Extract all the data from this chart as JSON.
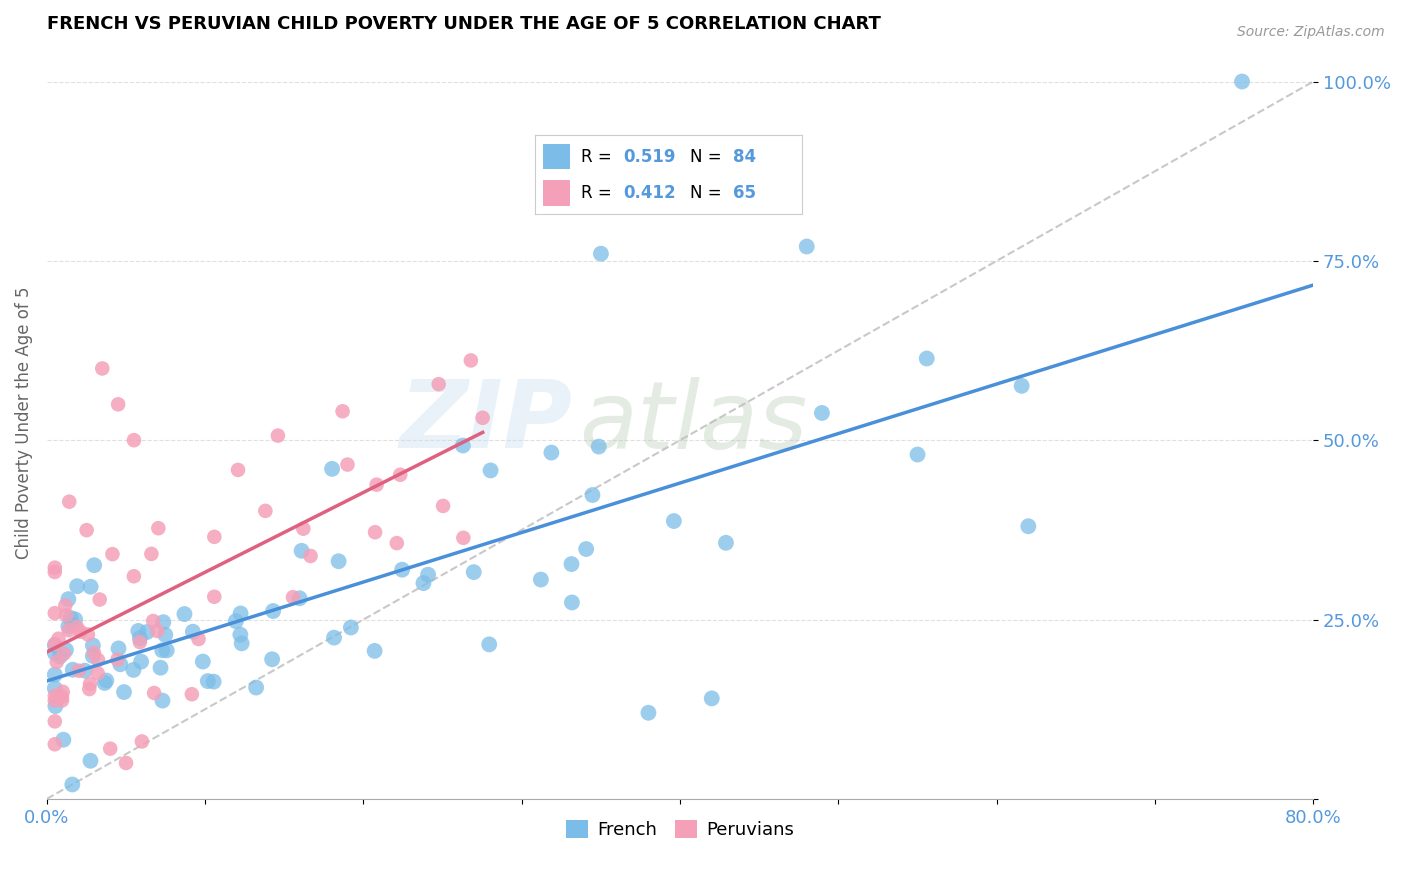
{
  "title": "FRENCH VS PERUVIAN CHILD POVERTY UNDER THE AGE OF 5 CORRELATION CHART",
  "source": "Source: ZipAtlas.com",
  "ylabel": "Child Poverty Under the Age of 5",
  "x_min": 0.0,
  "x_max": 0.8,
  "y_min": 0.0,
  "y_max": 1.05,
  "french_color": "#7bbde8",
  "peruvian_color": "#f4a0b8",
  "french_line_color": "#4a90d9",
  "peruvian_line_color": "#e06080",
  "diagonal_color": "#bbbbbb",
  "french_R": 0.519,
  "french_N": 84,
  "peruvian_R": 0.412,
  "peruvian_N": 65,
  "background_color": "#ffffff",
  "grid_color": "#dddddd",
  "watermark_zip": "ZIP",
  "watermark_atlas": "atlas",
  "ytick_color": "#5599dd",
  "xtick_color": "#5599dd",
  "french_seed": 42,
  "peruvian_seed": 99
}
